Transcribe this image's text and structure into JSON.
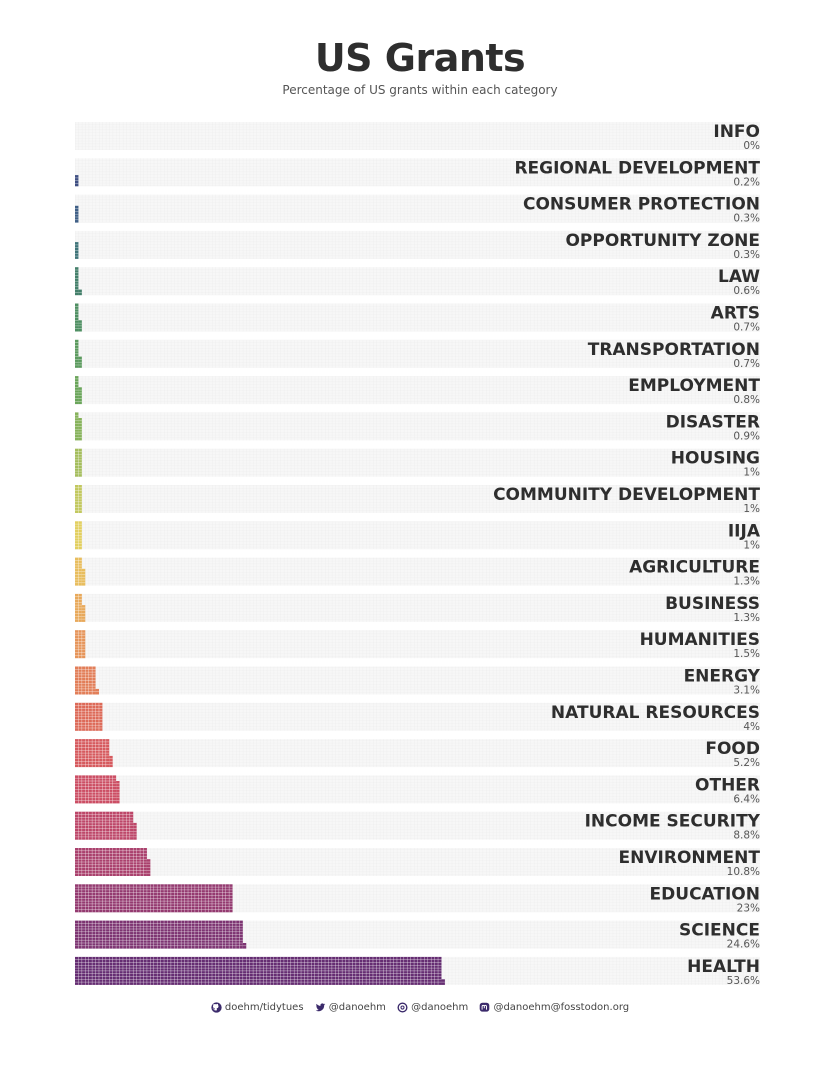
{
  "page": {
    "title": "US Grants",
    "subtitle": "Percentage of US grants within each category"
  },
  "chart_data": {
    "type": "waffle-bar",
    "title": "US Grants",
    "subtitle": "Percentage of US grants within each category",
    "categories": [
      "INFO",
      "REGIONAL DEVELOPMENT",
      "CONSUMER PROTECTION",
      "OPPORTUNITY ZONE",
      "LAW",
      "ARTS",
      "TRANSPORTATION",
      "EMPLOYMENT",
      "DISASTER",
      "HOUSING",
      "COMMUNITY DEVELOPMENT",
      "IIJA",
      "AGRICULTURE",
      "BUSINESS",
      "HUMANITIES",
      "ENERGY",
      "NATURAL RESOURCES",
      "FOOD",
      "OTHER",
      "INCOME SECURITY",
      "ENVIRONMENT",
      "EDUCATION",
      "SCIENCE",
      "HEALTH"
    ],
    "values": [
      0,
      0.2,
      0.3,
      0.3,
      0.6,
      0.7,
      0.7,
      0.8,
      0.9,
      1,
      1,
      1,
      1.3,
      1.3,
      1.5,
      3.1,
      4,
      5.2,
      6.4,
      8.8,
      10.8,
      23,
      24.6,
      53.6
    ],
    "value_labels": [
      "0%",
      "0.2%",
      "0.3%",
      "0.3%",
      "0.6%",
      "0.7%",
      "0.7%",
      "0.8%",
      "0.9%",
      "1%",
      "1%",
      "1%",
      "1.3%",
      "1.3%",
      "1.5%",
      "3.1%",
      "4%",
      "5.2%",
      "6.4%",
      "8.8%",
      "10.8%",
      "23%",
      "24.6%",
      "53.6%"
    ],
    "xlim": [
      0,
      100
    ],
    "colors": [
      "#3b2a6b",
      "#3f4f82",
      "#3f5f86",
      "#3f7479",
      "#437f6a",
      "#4e8f62",
      "#5b9a5e",
      "#6aa55a",
      "#86b25a",
      "#a4bd5c",
      "#c2c85e",
      "#e2cf5f",
      "#e8bd5d",
      "#e8a95b",
      "#e6955a",
      "#e27e58",
      "#dd6a58",
      "#d65a5e",
      "#cc4e64",
      "#bd4769",
      "#aa416d",
      "#943a70",
      "#7d3472",
      "#652d72"
    ],
    "grid_color": "#e9e9e9",
    "panel_color": "#f7f7f7"
  },
  "footer": {
    "github": "doehm/tidytues",
    "twitter": "@danoehm",
    "threads": "@danoehm",
    "mastodon": "@danoehm@fosstodon.org"
  }
}
